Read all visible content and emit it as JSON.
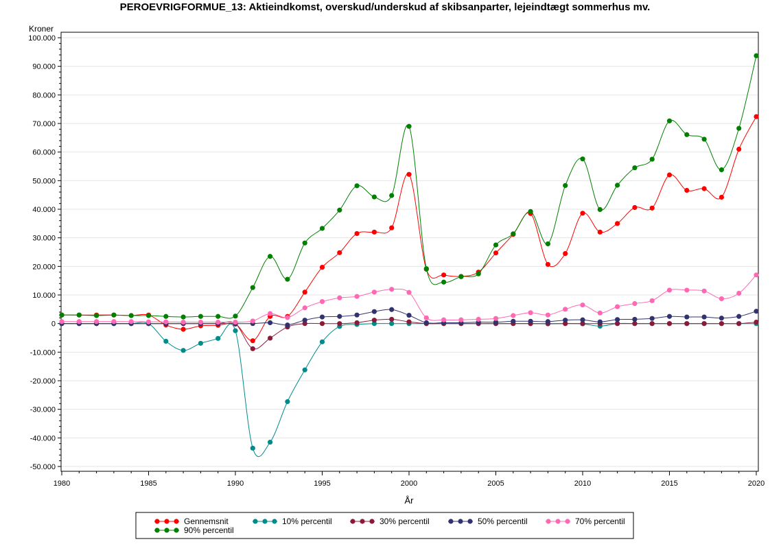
{
  "chart_data": {
    "type": "line",
    "title": "PEROEVRIGFORMUE_13:  Aktieindkomst, overskud/underskud af skibsanparter, lejeindtægt sommerhus mv.",
    "xlabel": "År",
    "ylabel": "Kroner",
    "xlim": [
      1980,
      2020
    ],
    "ylim": [
      -50000,
      100000
    ],
    "x_ticks": [
      1980,
      1985,
      1990,
      1995,
      2000,
      2005,
      2010,
      2015,
      2020
    ],
    "x_tick_labels": [
      "1980",
      "1985",
      "1990",
      "1995",
      "2000",
      "2005",
      "2010",
      "2015",
      "2020"
    ],
    "y_ticks": [
      -50000,
      -40000,
      -30000,
      -20000,
      -10000,
      0,
      10000,
      20000,
      30000,
      40000,
      50000,
      60000,
      70000,
      80000,
      90000,
      100000
    ],
    "y_tick_labels": [
      "-50.000",
      "-40.000",
      "-30.000",
      "-20.000",
      "-10.000",
      "0",
      "10.000",
      "20.000",
      "30.000",
      "40.000",
      "50.000",
      "60.000",
      "70.000",
      "80.000",
      "90.000",
      "100.000"
    ],
    "grid": true,
    "legend_position": "bottom",
    "x": [
      1980,
      1981,
      1982,
      1983,
      1984,
      1985,
      1986,
      1987,
      1988,
      1989,
      1990,
      1991,
      1992,
      1993,
      1994,
      1995,
      1996,
      1997,
      1998,
      1999,
      2000,
      2001,
      2002,
      2003,
      2004,
      2005,
      2006,
      2007,
      2008,
      2009,
      2010,
      2011,
      2012,
      2013,
      2014,
      2015,
      2016,
      2017,
      2018,
      2019,
      2020
    ],
    "series": [
      {
        "name": "Gennemsnit",
        "color": "#ff0000",
        "values": [
          3000,
          3000,
          3000,
          3000,
          2800,
          3000,
          -500,
          -2000,
          -800,
          -600,
          -200,
          -6000,
          2500,
          2500,
          11000,
          19700,
          24800,
          31500,
          32000,
          33500,
          52200,
          19000,
          17000,
          16500,
          18000,
          24700,
          31200,
          38500,
          20700,
          24500,
          38600,
          32000,
          35000,
          40600,
          40400,
          52000,
          46600,
          47200,
          44200,
          61000,
          72400
        ]
      },
      {
        "name": "10% percentil",
        "color": "#008b8b",
        "values": [
          0,
          0,
          0,
          0,
          0,
          0,
          -6200,
          -9400,
          -6900,
          -5200,
          -2500,
          -43600,
          -41500,
          -27300,
          -16200,
          -6400,
          -1000,
          -300,
          0,
          0,
          0,
          0,
          0,
          0,
          0,
          0,
          0,
          0,
          -100,
          0,
          -100,
          -900,
          0,
          0,
          0,
          0,
          0,
          0,
          0,
          0,
          0
        ]
      },
      {
        "name": "30% percentil",
        "color": "#8b1a3a",
        "values": [
          0,
          0,
          0,
          0,
          0,
          0,
          0,
          0,
          0,
          0,
          0,
          -8800,
          -5100,
          -1200,
          0,
          0,
          0,
          300,
          1200,
          1500,
          600,
          0,
          0,
          0,
          0,
          0,
          0,
          0,
          0,
          0,
          0,
          0,
          0,
          0,
          0,
          0,
          0,
          0,
          0,
          0,
          500
        ]
      },
      {
        "name": "50% percentil",
        "color": "#32326e",
        "values": [
          0,
          0,
          0,
          0,
          0,
          0,
          0,
          0,
          0,
          0,
          0,
          0,
          300,
          -500,
          1200,
          2300,
          2500,
          3000,
          4200,
          4900,
          2900,
          300,
          300,
          300,
          500,
          500,
          800,
          800,
          700,
          1200,
          1300,
          600,
          1400,
          1500,
          1800,
          2500,
          2300,
          2300,
          1900,
          2500,
          4300
        ]
      },
      {
        "name": "70% percentil",
        "color": "#ff69b4",
        "values": [
          700,
          700,
          700,
          700,
          700,
          600,
          600,
          500,
          500,
          500,
          500,
          900,
          3500,
          2100,
          5500,
          7700,
          9000,
          9500,
          11000,
          12000,
          10900,
          2000,
          1300,
          1300,
          1500,
          1800,
          2800,
          3800,
          3000,
          5000,
          6500,
          3700,
          5900,
          7000,
          8000,
          11700,
          11700,
          11400,
          8700,
          10600,
          17000
        ]
      },
      {
        "name": "90% percentil",
        "color": "#008000",
        "values": [
          3000,
          3000,
          2800,
          3000,
          2800,
          2800,
          2500,
          2300,
          2500,
          2500,
          2600,
          12600,
          23500,
          15500,
          28200,
          33300,
          39700,
          48200,
          44300,
          44800,
          69000,
          19200,
          14500,
          16400,
          17400,
          27500,
          31400,
          39200,
          27900,
          48300,
          57600,
          39900,
          48400,
          54500,
          57500,
          70900,
          66100,
          64500,
          53800,
          68300,
          93700
        ]
      }
    ]
  }
}
